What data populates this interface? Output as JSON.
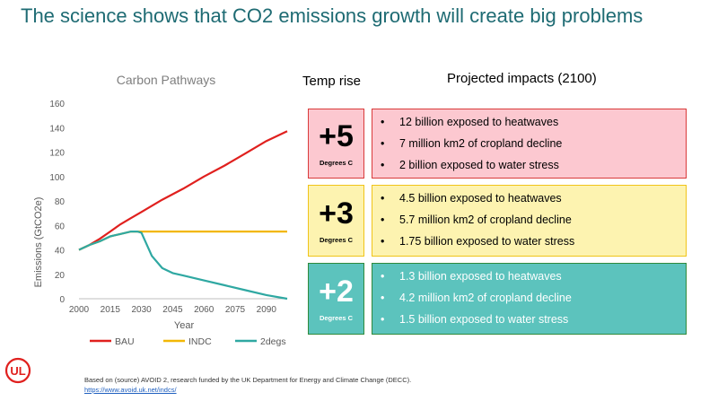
{
  "title": "The science shows that CO2 emissions growth will create big problems",
  "colors": {
    "title": "#1e6b73",
    "bau": "#e0201e",
    "indc": "#f2b705",
    "twodegs": "#2fa8a2"
  },
  "chart_data": {
    "type": "line",
    "title": "Carbon Pathways",
    "xlabel": "Year",
    "ylabel": "Emissions (GtCO2e)",
    "xlim": [
      2000,
      2100
    ],
    "ylim": [
      0,
      160
    ],
    "xticks": [
      2000,
      2015,
      2030,
      2045,
      2060,
      2075,
      2090
    ],
    "yticks": [
      0,
      20,
      40,
      60,
      80,
      100,
      120,
      140,
      160
    ],
    "legend_position": "bottom",
    "grid": false,
    "series": [
      {
        "name": "BAU",
        "color": "#e0201e",
        "x": [
          2000,
          2005,
          2010,
          2015,
          2020,
          2025,
          2030,
          2040,
          2050,
          2060,
          2070,
          2080,
          2090,
          2100
        ],
        "y": [
          40,
          44,
          49,
          55,
          61,
          66,
          71,
          81,
          90,
          100,
          109,
          119,
          129,
          137
        ]
      },
      {
        "name": "INDC",
        "color": "#f2b705",
        "x": [
          2000,
          2005,
          2010,
          2015,
          2020,
          2025,
          2030,
          2040,
          2050,
          2060,
          2070,
          2080,
          2090,
          2100
        ],
        "y": [
          40,
          44,
          47,
          51,
          53,
          55,
          55,
          55,
          55,
          55,
          55,
          55,
          55,
          55
        ]
      },
      {
        "name": "2degs",
        "color": "#2fa8a2",
        "x": [
          2000,
          2005,
          2010,
          2015,
          2020,
          2025,
          2028,
          2030,
          2035,
          2040,
          2045,
          2050,
          2060,
          2070,
          2080,
          2090,
          2100
        ],
        "y": [
          40,
          44,
          47,
          51,
          53,
          55,
          55,
          54,
          35,
          25,
          21,
          19,
          15,
          11,
          7,
          3,
          0
        ]
      }
    ]
  },
  "headers": {
    "temp": "Temp rise",
    "impacts": "Projected impacts (2100)"
  },
  "scenarios": [
    {
      "temp": "+5",
      "unit": "Degrees C",
      "bg": "#fcc8d0",
      "border": "#d93a3a",
      "text": "#000000",
      "bullet": "•",
      "impacts": [
        "12 billion exposed to heatwaves",
        "7 million km2 of cropland decline",
        "2 billion exposed to water stress"
      ]
    },
    {
      "temp": "+3",
      "unit": "Degrees C",
      "bg": "#fdf3b0",
      "border": "#f0c419",
      "text": "#000000",
      "bullet": "•",
      "impacts": [
        "4.5 billion exposed to heatwaves",
        "5.7 million km2 of cropland decline",
        "1.75 billion exposed to water stress"
      ]
    },
    {
      "temp": "+2",
      "unit": "Degrees C",
      "bg": "#5cc3bd",
      "border": "#2f8a3b",
      "text": "#ffffff",
      "bullet": "•",
      "impacts": [
        "1.3 billion exposed to heatwaves",
        "4.2 million km2 of cropland decline",
        "1.5 billion exposed to water stress"
      ]
    }
  ],
  "source": {
    "text": "Based on (source) AVOID 2, research funded by the UK Department for Energy and Climate Change (DECC).",
    "link": "https://www.avoid.uk.net/indcs/"
  },
  "logo": {
    "text": "UL",
    "color": "#e0201e"
  }
}
